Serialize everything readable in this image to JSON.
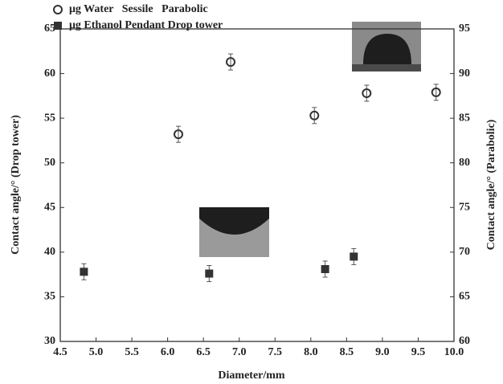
{
  "chart_data": {
    "type": "scatter",
    "x_label": "Diameter/mm",
    "y_label": "Contact angle/° (Drop tower)",
    "y2_label": "Contact angle/° (Parabolic)",
    "xlim": [
      4.5,
      10.0
    ],
    "xticks": [
      4.5,
      {
        "value": 5,
        "label": "5.0"
      },
      5.5,
      {
        "value": 6,
        "label": "6.0"
      },
      6.5,
      {
        "value": 7,
        "label": "7.0"
      },
      7.5,
      {
        "value": 8,
        "label": "8.0"
      },
      8.5,
      {
        "value": 9,
        "label": "9.0"
      },
      9.5,
      {
        "value": 10,
        "label": "10.0"
      }
    ],
    "ylim": [
      30,
      65
    ],
    "yticks": [
      30,
      35,
      40,
      45,
      50,
      55,
      60,
      65
    ],
    "y2lim": [
      60,
      95
    ],
    "y2ticks": [
      60,
      65,
      70,
      75,
      80,
      85,
      90,
      95
    ],
    "legend": "upper left",
    "series": [
      {
        "name": "μg Water   Sessile   Parabolic",
        "color": "#333333",
        "marker": "open-circle",
        "axis": "y2",
        "x": [
          6.15,
          6.88,
          8.05,
          8.78,
          9.75
        ],
        "values": [
          83.2,
          91.3,
          85.3,
          87.8,
          87.9
        ],
        "errors": [
          0.9,
          0.9,
          0.9,
          0.9,
          0.9
        ]
      },
      {
        "name": "μg Ethanol Pendant Drop tower",
        "color": "#333333",
        "marker": "filled-square",
        "axis": "y",
        "x": [
          4.83,
          6.58,
          8.2,
          8.6
        ],
        "values": [
          37.8,
          37.6,
          38.1,
          39.5
        ],
        "errors": [
          0.9,
          0.9,
          0.9,
          0.9
        ]
      }
    ]
  }
}
